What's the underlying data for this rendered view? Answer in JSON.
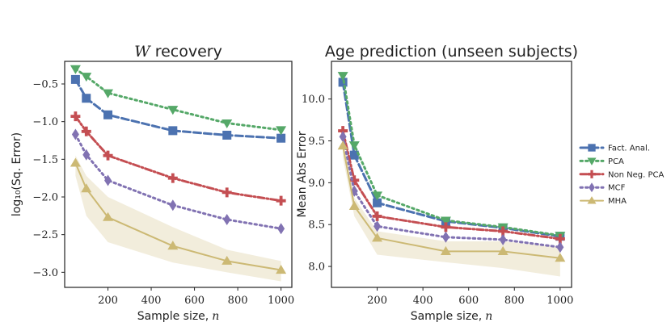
{
  "chart_data": [
    {
      "type": "line",
      "title_italic": "W",
      "title": "recovery",
      "xlabel": "Sample size,",
      "xlabel_var": "n",
      "ylabel": "log₁₀(Sq. Error)",
      "xlim": [
        0,
        1050
      ],
      "ylim": [
        -3.2,
        -0.2
      ],
      "xticks": [
        200,
        400,
        600,
        800,
        1000
      ],
      "yticks": [
        -3.0,
        -2.5,
        -2.0,
        -1.5,
        -1.0,
        -0.5
      ],
      "ytick_labels": [
        "−3.0",
        "−2.5",
        "−2.0",
        "−1.5",
        "−1.0",
        "−0.5"
      ],
      "x": [
        50,
        100,
        200,
        500,
        750,
        1000
      ],
      "series": [
        {
          "name": "Fact. Anal.",
          "values": [
            -0.44,
            -0.69,
            -0.91,
            -1.12,
            -1.18,
            -1.22
          ]
        },
        {
          "name": "PCA",
          "values": [
            -0.3,
            -0.4,
            -0.62,
            -0.84,
            -1.02,
            -1.11
          ]
        },
        {
          "name": "Non Neg. PCA",
          "values": [
            -0.93,
            -1.13,
            -1.45,
            -1.75,
            -1.94,
            -2.05
          ]
        },
        {
          "name": "MCF",
          "values": [
            -1.17,
            -1.44,
            -1.78,
            -2.11,
            -2.3,
            -2.42
          ]
        },
        {
          "name": "MHA",
          "values": [
            -1.55,
            -1.89,
            -2.27,
            -2.65,
            -2.85,
            -2.97
          ],
          "band_upper": [
            -1.45,
            -1.72,
            -2.0,
            -2.4,
            -2.7,
            -2.85
          ],
          "band_lower": [
            -1.72,
            -2.25,
            -2.6,
            -2.87,
            -3.0,
            -3.12
          ]
        }
      ]
    },
    {
      "type": "line",
      "title": "Age prediction (unseen subjects)",
      "xlabel": "Sample size,",
      "xlabel_var": "n",
      "ylabel": "Mean Abs Error",
      "xlim": [
        0,
        1050
      ],
      "ylim": [
        7.75,
        10.45
      ],
      "xticks": [
        200,
        400,
        600,
        800,
        1000
      ],
      "yticks": [
        8.0,
        8.5,
        9.0,
        9.5,
        10.0
      ],
      "ytick_labels": [
        "8.0",
        "8.5",
        "9.0",
        "9.5",
        "10.0"
      ],
      "x": [
        50,
        100,
        200,
        500,
        750,
        1000
      ],
      "series": [
        {
          "name": "Fact. Anal.",
          "values": [
            10.2,
            9.33,
            8.76,
            8.54,
            8.46,
            8.36
          ]
        },
        {
          "name": "PCA",
          "values": [
            10.28,
            9.45,
            8.85,
            8.55,
            8.47,
            8.37
          ]
        },
        {
          "name": "Non Neg. PCA",
          "values": [
            9.62,
            9.03,
            8.6,
            8.47,
            8.42,
            8.33
          ]
        },
        {
          "name": "MCF",
          "values": [
            9.55,
            8.9,
            8.48,
            8.35,
            8.32,
            8.23
          ]
        },
        {
          "name": "MHA",
          "values": [
            9.44,
            8.72,
            8.34,
            8.18,
            8.18,
            8.1
          ],
          "band_upper": [
            9.5,
            8.82,
            8.42,
            8.3,
            8.3,
            8.23
          ],
          "band_lower": [
            9.3,
            8.6,
            8.14,
            8.05,
            7.98,
            7.88
          ]
        }
      ]
    }
  ],
  "legend": {
    "placement": "right of second plot",
    "entries": [
      {
        "name": "Fact. Anal.",
        "color": "#4c72b0",
        "marker": "square",
        "dash": "dash"
      },
      {
        "name": "PCA",
        "color": "#55a868",
        "marker": "triangle-down",
        "dash": "dot"
      },
      {
        "name": "Non Neg. PCA",
        "color": "#c44e52",
        "marker": "plus",
        "dash": "dashdot"
      },
      {
        "name": "MCF",
        "color": "#8172b2",
        "marker": "diamond",
        "dash": "dot"
      },
      {
        "name": "MHA",
        "color": "#ccb974",
        "marker": "triangle-up",
        "dash": "solid"
      }
    ]
  }
}
